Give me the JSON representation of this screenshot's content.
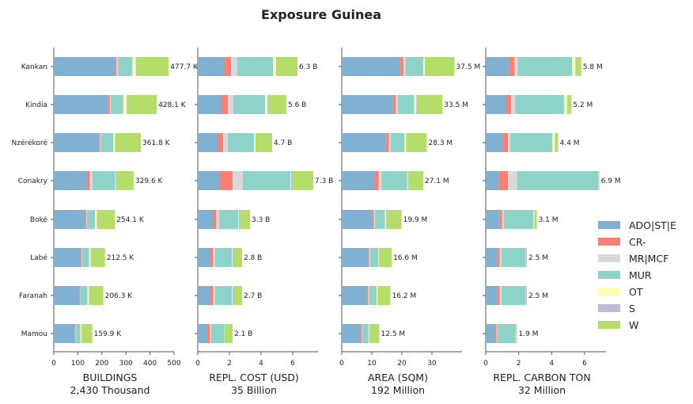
{
  "chart_data": {
    "type": "bar",
    "orientation": "horizontal-stacked",
    "title": "Exposure Guinea",
    "categories": [
      "Kankan",
      "Kindia",
      "Nzérékoré",
      "Conakry",
      "Boké",
      "Labé",
      "Faranah",
      "Mamou"
    ],
    "legend": {
      "placement": "right",
      "entries": [
        {
          "name": "ADO|ST|E",
          "color": "#80b1d3"
        },
        {
          "name": "CR-",
          "color": "#fb8072"
        },
        {
          "name": "MR|MCF",
          "color": "#d9d9d9"
        },
        {
          "name": "MUR",
          "color": "#8dd3c7"
        },
        {
          "name": "OT",
          "color": "#ffffb3"
        },
        {
          "name": "S",
          "color": "#bebada"
        },
        {
          "name": "W",
          "color": "#b3de69"
        }
      ]
    },
    "panels": [
      {
        "xlabel": "BUILDINGS",
        "total_label": "2,430 Thousand",
        "xlim": [
          0,
          500
        ],
        "xticks": [
          {
            "v": 0,
            "t": "0"
          },
          {
            "v": 100,
            "t": "100"
          },
          {
            "v": 200,
            "t": "200"
          },
          {
            "v": 300,
            "t": "300"
          },
          {
            "v": 400,
            "t": "400"
          },
          {
            "v": 500,
            "t": "500"
          }
        ],
        "data_labels": [
          "477.7 K",
          "428.1 K",
          "361.8 K",
          "329.6 K",
          "254.1 K",
          "212.5 K",
          "206.3 K",
          "159.9 K"
        ],
        "values": [
          [
            257,
            4,
            6,
            60,
            14,
            3,
            134
          ],
          [
            225,
            8,
            4,
            52,
            14,
            3,
            122
          ],
          [
            190,
            3,
            3,
            52,
            6,
            2,
            106
          ],
          [
            140,
            10,
            11,
            94,
            2,
            2,
            73
          ],
          [
            132,
            3,
            3,
            33,
            8,
            2,
            73
          ],
          [
            113,
            2,
            2,
            30,
            6,
            2,
            58
          ],
          [
            108,
            2,
            2,
            28,
            6,
            2,
            58
          ],
          [
            88,
            2,
            2,
            19,
            4,
            1,
            44
          ]
        ]
      },
      {
        "xlabel": "REPL. COST (USD)",
        "total_label": "35 Billion",
        "xlim": [
          0,
          7.6
        ],
        "xticks": [
          {
            "v": 0,
            "t": "0"
          },
          {
            "v": 2,
            "t": "2"
          },
          {
            "v": 4,
            "t": "4"
          },
          {
            "v": 6,
            "t": "6"
          }
        ],
        "data_labels": [
          "6.3 B",
          "5.6 B",
          "4.7 B",
          "7.3 B",
          "3.3 B",
          "2.8 B",
          "2.7 B",
          "2.1 B"
        ],
        "values": [
          [
            1.65,
            0.45,
            0.4,
            2.25,
            0.2,
            0.05,
            1.3
          ],
          [
            1.45,
            0.45,
            0.35,
            2.0,
            0.15,
            0.05,
            1.15
          ],
          [
            1.25,
            0.35,
            0.3,
            1.65,
            0.1,
            0.05,
            1.0
          ],
          [
            1.35,
            0.85,
            0.65,
            3.0,
            0.05,
            0.05,
            1.35
          ],
          [
            0.95,
            0.2,
            0.2,
            1.2,
            0.05,
            0.05,
            0.65
          ],
          [
            0.8,
            0.15,
            0.15,
            1.05,
            0.05,
            0.05,
            0.55
          ],
          [
            0.75,
            0.2,
            0.15,
            1.05,
            0.05,
            0.05,
            0.55
          ],
          [
            0.6,
            0.15,
            0.1,
            0.8,
            0.02,
            0.03,
            0.5
          ]
        ]
      },
      {
        "xlabel": "AREA (SQM)",
        "total_label": "192 Million",
        "xlim": [
          0,
          40
        ],
        "xticks": [
          {
            "v": 0,
            "t": "0"
          },
          {
            "v": 10,
            "t": "10"
          },
          {
            "v": 20,
            "t": "20"
          },
          {
            "v": 30,
            "t": "30"
          }
        ],
        "data_labels": [
          "37.5 M",
          "33.5 M",
          "28.3 M",
          "27.1 M",
          "19.9 M",
          "16.6 M",
          "16.2 M",
          "12.5 M"
        ],
        "values": [
          [
            19.5,
            1.0,
            0.8,
            5.8,
            0.5,
            0.2,
            9.7
          ],
          [
            17.0,
            1.0,
            0.6,
            5.5,
            0.7,
            0.2,
            8.5
          ],
          [
            14.7,
            1.0,
            0.6,
            4.6,
            0.5,
            0.2,
            6.7
          ],
          [
            10.8,
            1.5,
            1.0,
            8.5,
            0.2,
            0.2,
            4.9
          ],
          [
            10.2,
            0.5,
            0.4,
            3.3,
            0.3,
            0.2,
            5.0
          ],
          [
            8.8,
            0.3,
            0.3,
            2.7,
            0.2,
            0.1,
            4.2
          ],
          [
            8.4,
            0.3,
            0.3,
            2.6,
            0.3,
            0.1,
            4.2
          ],
          [
            6.4,
            0.3,
            0.2,
            2.0,
            0.2,
            0.1,
            3.3
          ]
        ]
      },
      {
        "xlabel": "REPL. CARBON TON",
        "total_label": "32 Million",
        "xlim": [
          0,
          7.3
        ],
        "xticks": [
          {
            "v": 0,
            "t": "0"
          },
          {
            "v": 2,
            "t": "2"
          },
          {
            "v": 4,
            "t": "4"
          },
          {
            "v": 6,
            "t": "6"
          }
        ],
        "data_labels": [
          "5.8 M",
          "5.2 M",
          "4.4 M",
          "6.9 M",
          "3.1 M",
          "2.5 M",
          "2.5 M",
          "1.9 M"
        ],
        "values": [
          [
            1.4,
            0.35,
            0.2,
            3.3,
            0.2,
            0.05,
            0.3
          ],
          [
            1.25,
            0.3,
            0.25,
            2.95,
            0.2,
            0.05,
            0.2
          ],
          [
            1.05,
            0.3,
            0.15,
            2.55,
            0.15,
            0.05,
            0.15
          ],
          [
            0.8,
            0.55,
            0.55,
            4.95,
            0.02,
            0.02,
            0.01
          ],
          [
            0.85,
            0.15,
            0.1,
            1.8,
            0.05,
            0.03,
            0.12
          ],
          [
            0.7,
            0.15,
            0.1,
            1.45,
            0.02,
            0.03,
            0.05
          ],
          [
            0.7,
            0.15,
            0.1,
            1.45,
            0.02,
            0.03,
            0.05
          ],
          [
            0.55,
            0.1,
            0.05,
            1.12,
            0.02,
            0.02,
            0.04
          ]
        ]
      }
    ]
  }
}
